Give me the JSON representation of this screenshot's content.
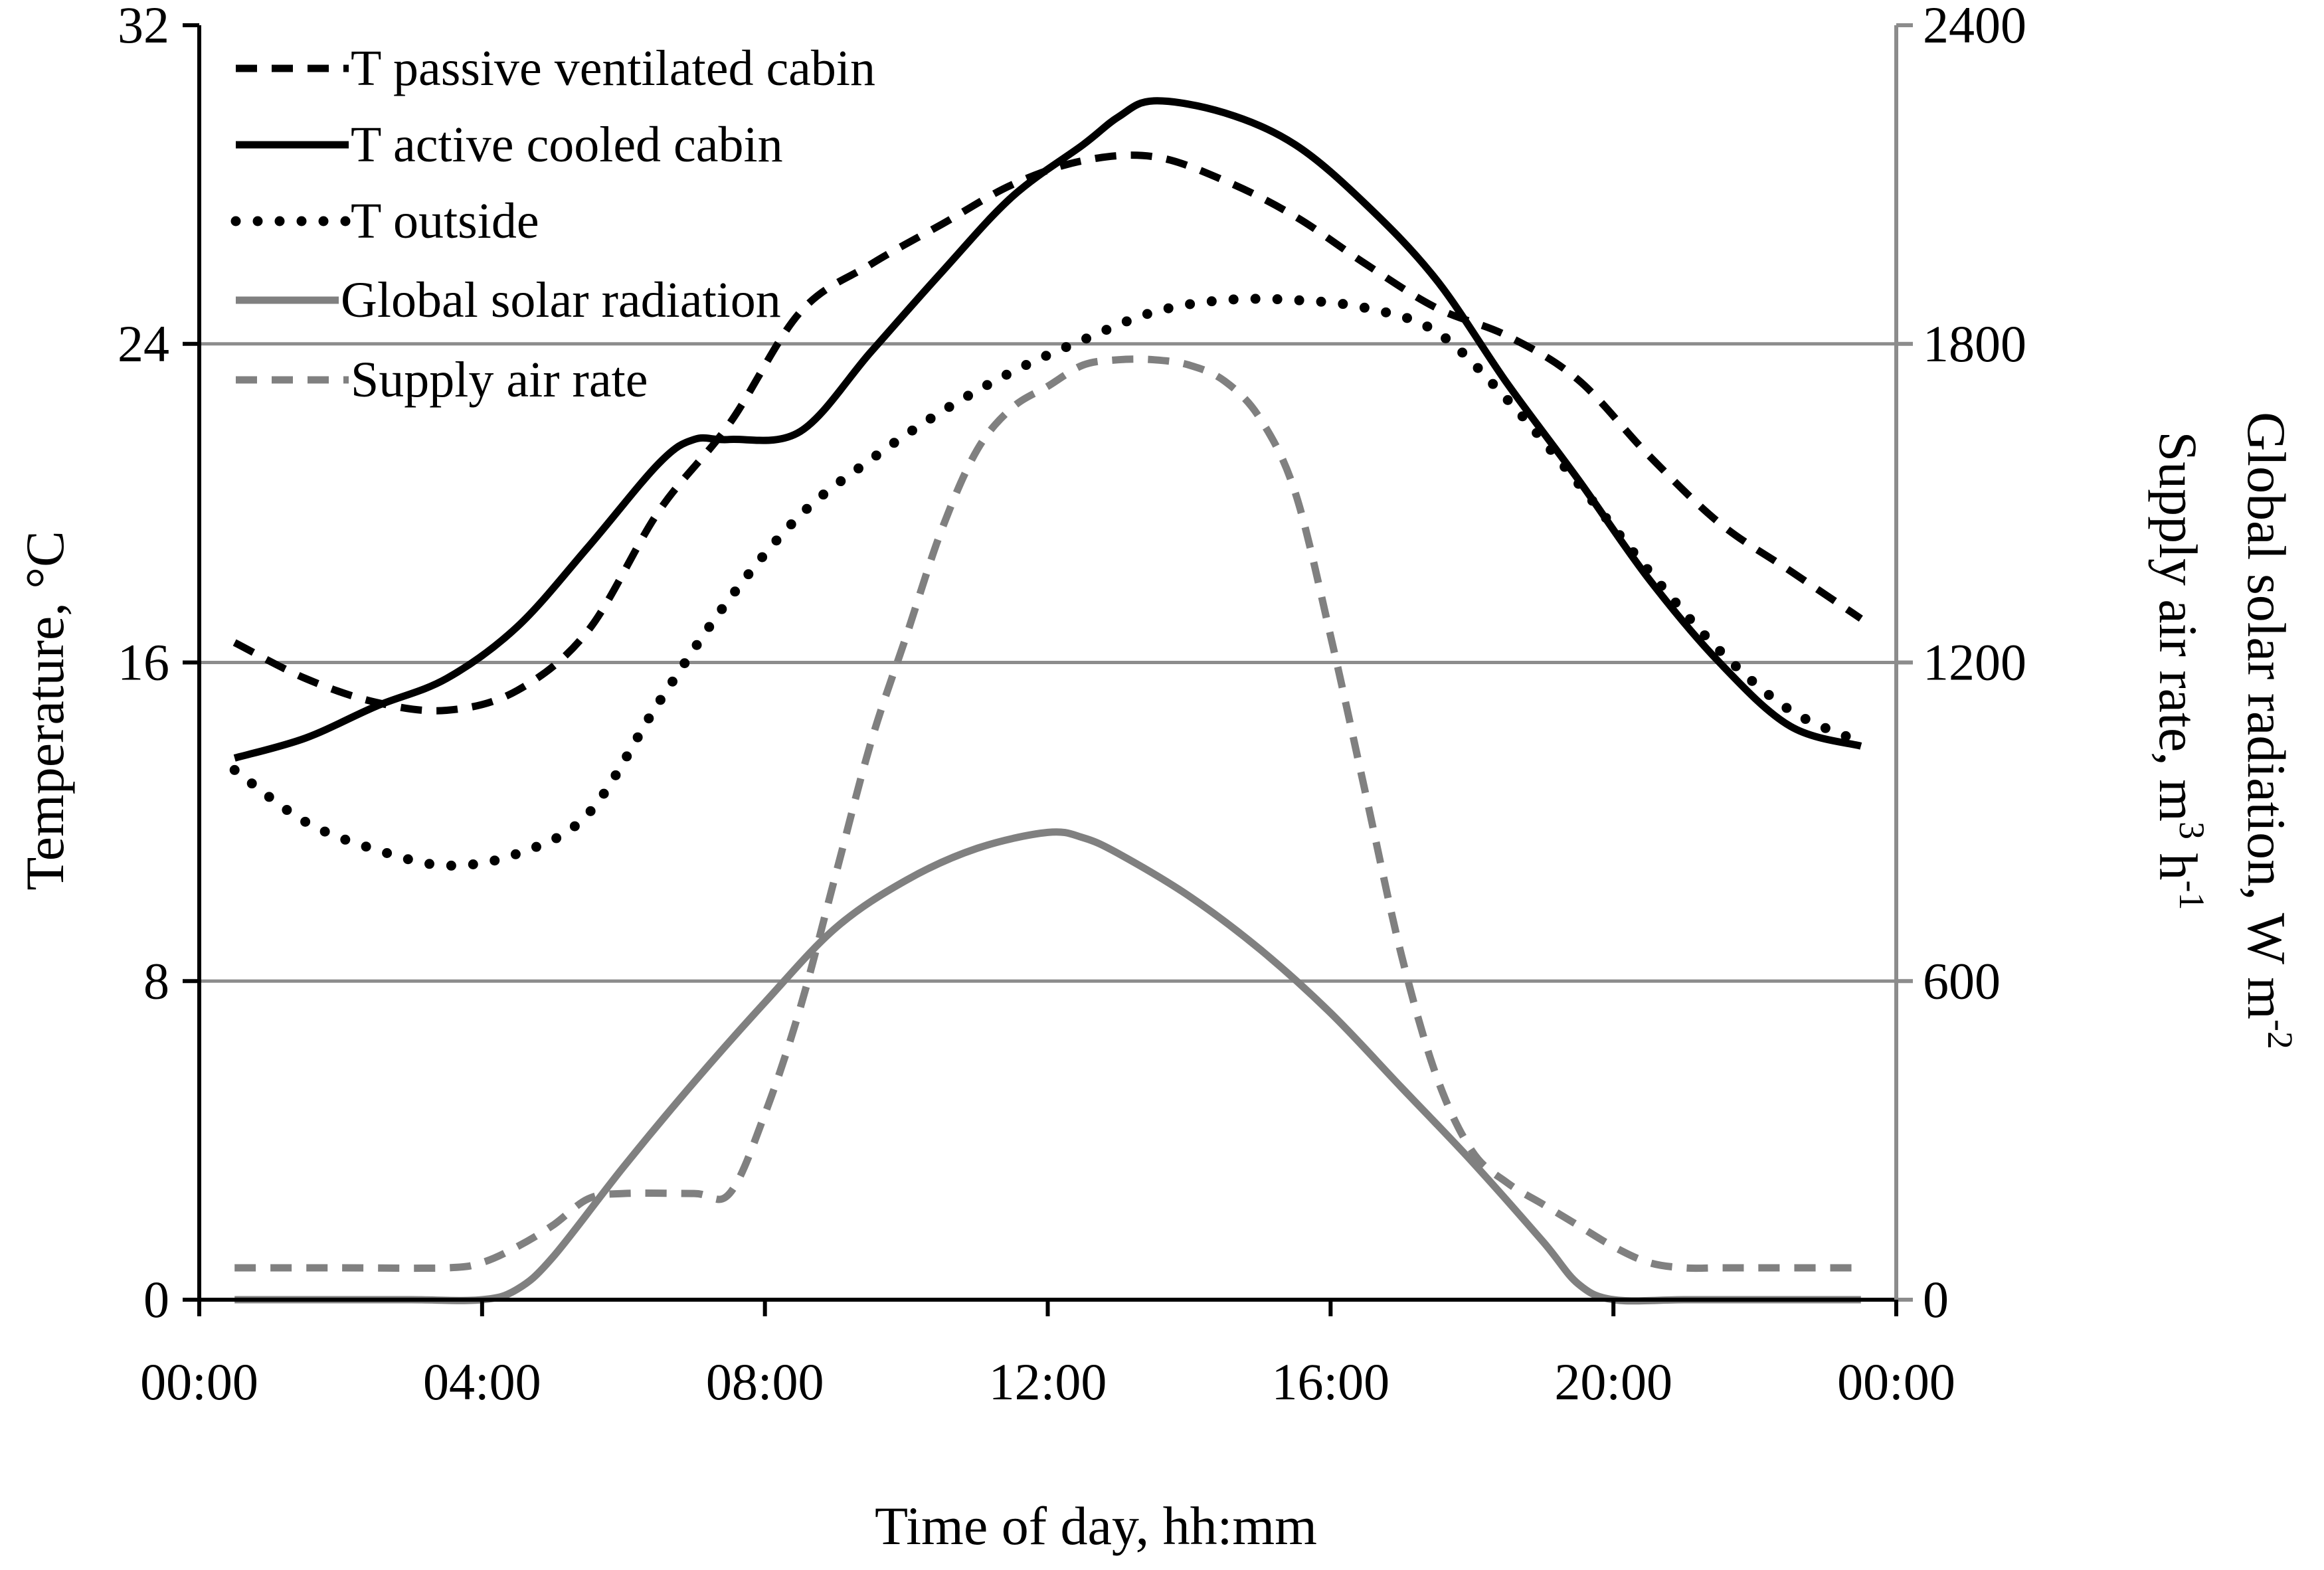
{
  "chart_data": {
    "type": "line",
    "x_unit": "hours",
    "xlabel": "Time of day, hh:mm",
    "ylabel_left": "Temperature, °C",
    "ylabel_right_1": {
      "main": "Global solar radiation, W m",
      "sup": "-2"
    },
    "ylabel_right_2": {
      "pre": "Supply air rate, m",
      "sup1": "3",
      "mid": " h",
      "sup2": "-1"
    },
    "xlim": [
      0,
      24
    ],
    "x_ticks": [
      0,
      4,
      8,
      12,
      16,
      20,
      24
    ],
    "x_tick_labels": [
      "00:00",
      "04:00",
      "08:00",
      "12:00",
      "16:00",
      "20:00",
      "00:00"
    ],
    "ylim_left": [
      0,
      32
    ],
    "y_ticks_left": [
      0,
      8,
      16,
      24,
      32
    ],
    "y_tick_labels_left": [
      "0",
      "8",
      "16",
      "24",
      "32"
    ],
    "ylim_right": [
      0,
      2400
    ],
    "y_ticks_right": [
      0,
      600,
      1200,
      1800,
      2400
    ],
    "y_tick_labels_right": [
      "0",
      "600",
      "1200",
      "1800",
      "2400"
    ],
    "gridlines_right": [
      600,
      1200,
      1800
    ],
    "legend_position": "top-left",
    "series": [
      {
        "name": "T passive ventilated cabin",
        "axis": "left",
        "color": "#000000",
        "style": "dashed",
        "x": [
          0.5,
          1.5,
          2.5,
          3.5,
          4.5,
          5.5,
          6.5,
          7.5,
          8.5,
          9.5,
          10.5,
          11.5,
          12.5,
          13.5,
          14.5,
          15.5,
          16.5,
          17.5,
          18.5,
          19.5,
          20.5,
          21.5,
          22.5,
          23.5
        ],
        "values": [
          16.5,
          15.6,
          15.0,
          14.8,
          15.3,
          16.8,
          19.8,
          22.0,
          24.8,
          26.0,
          27.0,
          28.0,
          28.6,
          28.7,
          28.1,
          27.2,
          26.0,
          24.9,
          24.2,
          23.1,
          21.2,
          19.5,
          18.3,
          17.1
        ]
      },
      {
        "name": "T active cooled cabin",
        "axis": "left",
        "color": "#000000",
        "style": "solid",
        "x": [
          0.5,
          1.5,
          2.5,
          3.5,
          4.5,
          5.5,
          6.5,
          7.0,
          7.5,
          8.5,
          9.5,
          10.5,
          11.5,
          12.5,
          13.0,
          13.5,
          14.5,
          15.5,
          16.5,
          17.5,
          18.5,
          19.5,
          20.5,
          21.5,
          22.5,
          23.5
        ],
        "values": [
          13.6,
          14.1,
          14.9,
          15.6,
          16.9,
          18.9,
          21.0,
          21.6,
          21.6,
          21.8,
          23.8,
          25.8,
          27.7,
          29.0,
          29.7,
          30.1,
          29.8,
          29.0,
          27.5,
          25.6,
          23.0,
          20.6,
          18.1,
          16.0,
          14.4,
          13.9
        ]
      },
      {
        "name": "T outside",
        "axis": "left",
        "color": "#000000",
        "style": "dotted",
        "x": [
          0.5,
          1.5,
          2.5,
          3.5,
          4.5,
          5.5,
          6.5,
          7.5,
          8.5,
          9.5,
          10.5,
          11.5,
          12.5,
          13.5,
          14.5,
          15.5,
          16.5,
          17.5,
          18.5,
          19.5,
          20.5,
          21.5,
          22.5,
          23.5
        ],
        "values": [
          13.3,
          12.0,
          11.3,
          10.9,
          11.2,
          12.2,
          15.0,
          17.6,
          19.7,
          21.1,
          22.3,
          23.3,
          24.1,
          24.8,
          25.1,
          25.1,
          24.9,
          24.3,
          22.6,
          20.5,
          18.3,
          16.3,
          14.8,
          14.0
        ]
      },
      {
        "name": "Global solar radiation",
        "axis": "right",
        "color": "#808080",
        "style": "solid",
        "x": [
          0.5,
          2.0,
          3.0,
          4.0,
          4.5,
          5.0,
          6.0,
          7.0,
          8.0,
          9.0,
          10.0,
          11.0,
          12.0,
          12.5,
          13.0,
          14.0,
          15.0,
          16.0,
          17.0,
          18.0,
          19.0,
          19.5,
          20.0,
          21.0,
          22.0,
          23.5
        ],
        "values": [
          0,
          0,
          0,
          0,
          20,
          80,
          250,
          410,
          560,
          700,
          790,
          850,
          880,
          870,
          840,
          760,
          660,
          540,
          400,
          260,
          110,
          30,
          0,
          0,
          0,
          0
        ]
      },
      {
        "name": "Supply air rate",
        "axis": "right",
        "color": "#808080",
        "style": "dashed",
        "x": [
          0.5,
          2.0,
          3.5,
          4.0,
          4.5,
          5.0,
          5.5,
          6.0,
          7.0,
          7.5,
          8.0,
          8.5,
          9.0,
          9.5,
          10.0,
          10.5,
          11.0,
          11.5,
          12.0,
          12.5,
          13.0,
          13.5,
          14.0,
          14.5,
          15.0,
          15.5,
          16.0,
          16.5,
          17.0,
          17.5,
          18.0,
          18.5,
          19.0,
          19.5,
          20.0,
          20.5,
          21.0,
          21.5,
          22.0,
          23.5
        ],
        "values": [
          60,
          60,
          60,
          70,
          100,
          140,
          190,
          200,
          200,
          200,
          350,
          550,
          800,
          1050,
          1250,
          1450,
          1600,
          1680,
          1720,
          1760,
          1770,
          1770,
          1760,
          1730,
          1660,
          1520,
          1250,
          950,
          650,
          420,
          280,
          220,
          180,
          140,
          100,
          70,
          60,
          60,
          60,
          60
        ]
      }
    ]
  }
}
